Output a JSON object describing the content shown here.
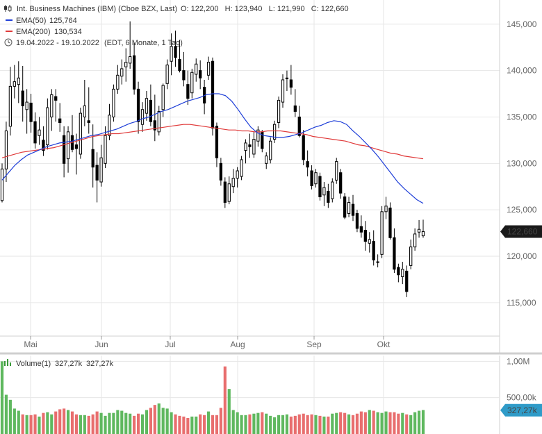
{
  "header": {
    "title": "Int. Business Machines (IBM) (Cboe BZX, Last)",
    "ohlc": "O: 122,200   H: 123,940   L: 121,990   C: 122,660",
    "ema50_label": "EMA(50)",
    "ema50_value": "125,764",
    "ema200_label": "EMA(200)",
    "ema200_value": "130,534",
    "range": "19.04.2022 - 19.10.2022",
    "range_note": "(EDT, 6 Monate, 1 Tag)"
  },
  "colors": {
    "up": "#000000",
    "down": "#000000",
    "ema50": "#1f3fd8",
    "ema200": "#e03a3a",
    "vol_up": "#5fb85f",
    "vol_down": "#e86e6e",
    "badge_price": "#1a1a1a",
    "badge_volume": "#2f9bc8",
    "grid": "#e6e6e6"
  },
  "chart_data": [
    {
      "type": "candlestick",
      "x_tick_labels": [
        "Mai",
        "Jun",
        "Jul",
        "Aug",
        "Sep",
        "Okt"
      ],
      "y_tick_labels": [
        "145,000",
        "140,000",
        "135,000",
        "130,000",
        "125,000",
        "120,000",
        "115,000"
      ],
      "y_ticks": [
        145,
        140,
        135,
        130,
        125,
        120,
        115
      ],
      "ylim": [
        111.4,
        147.6
      ],
      "last_price_label": "122,660",
      "last_price": 122.66,
      "candles": [
        [
          126.0,
          130.0,
          125.8,
          129.4
        ],
        [
          129.4,
          134.5,
          128.0,
          133.5
        ],
        [
          134.0,
          140.4,
          133.0,
          138.3
        ],
        [
          138.3,
          140.6,
          137.0,
          138.8
        ],
        [
          138.5,
          141.0,
          136.5,
          139.2
        ],
        [
          137.8,
          140.5,
          134.5,
          136.2
        ],
        [
          135.8,
          138.0,
          133.2,
          136.6
        ],
        [
          136.5,
          137.5,
          133.3,
          134.5
        ],
        [
          134.5,
          135.5,
          131.6,
          132.2
        ],
        [
          133.0,
          135.0,
          132.0,
          133.6
        ],
        [
          132.5,
          134.0,
          130.8,
          131.4
        ],
        [
          132.0,
          137.0,
          131.5,
          136.0
        ],
        [
          135.0,
          138.0,
          133.5,
          137.4
        ],
        [
          137.2,
          138.0,
          134.5,
          136.8
        ],
        [
          134.8,
          136.5,
          133.4,
          134.4
        ],
        [
          133.0,
          134.0,
          128.5,
          130.0
        ],
        [
          130.5,
          134.0,
          129.0,
          133.4
        ],
        [
          133.0,
          135.2,
          131.2,
          131.5
        ],
        [
          132.0,
          133.2,
          128.8,
          131.6
        ],
        [
          131.0,
          136.0,
          130.5,
          135.4
        ],
        [
          135.0,
          139.0,
          134.0,
          136.2
        ],
        [
          134.6,
          138.2,
          133.2,
          134.4
        ],
        [
          131.5,
          134.2,
          127.4,
          129.6
        ],
        [
          129.8,
          131.2,
          125.8,
          128.2
        ],
        [
          128.0,
          132.0,
          127.5,
          130.6
        ],
        [
          130.0,
          134.0,
          129.5,
          133.0
        ],
        [
          133.0,
          136.4,
          132.5,
          135.2
        ],
        [
          135.0,
          138.5,
          134.5,
          138.0
        ],
        [
          138.0,
          140.6,
          137.5,
          139.5
        ],
        [
          139.4,
          141.2,
          138.5,
          140.2
        ],
        [
          140.4,
          142.4,
          138.8,
          140.9
        ],
        [
          140.8,
          145.3,
          140.2,
          141.5
        ],
        [
          141.6,
          143.0,
          137.4,
          138.0
        ],
        [
          138.0,
          138.8,
          133.2,
          134.5
        ],
        [
          134.2,
          136.6,
          133.4,
          135.8
        ],
        [
          135.4,
          137.8,
          134.6,
          137.0
        ],
        [
          136.8,
          138.5,
          134.0,
          134.5
        ],
        [
          134.6,
          137.4,
          132.4,
          133.6
        ],
        [
          133.4,
          136.2,
          133.0,
          135.6
        ],
        [
          135.8,
          138.6,
          135.0,
          138.4
        ],
        [
          138.6,
          141.2,
          138.0,
          140.6
        ],
        [
          141.0,
          144.0,
          139.5,
          142.6
        ],
        [
          142.6,
          144.3,
          140.4,
          141.4
        ],
        [
          141.2,
          143.3,
          139.8,
          140.0
        ],
        [
          140.0,
          142.0,
          138.3,
          139.0
        ],
        [
          138.5,
          140.0,
          136.3,
          137.0
        ],
        [
          137.6,
          140.2,
          137.0,
          139.8
        ],
        [
          139.6,
          141.3,
          138.8,
          140.7
        ],
        [
          140.0,
          141.1,
          138.0,
          139.2
        ],
        [
          138.2,
          139.0,
          135.3,
          136.5
        ],
        [
          139.5,
          141.5,
          139.0,
          140.9
        ],
        [
          141.0,
          141.4,
          133.0,
          133.8
        ],
        [
          134.0,
          134.4,
          129.6,
          130.6
        ],
        [
          130.0,
          130.6,
          127.6,
          128.2
        ],
        [
          128.0,
          128.5,
          125.2,
          125.8
        ],
        [
          125.9,
          128.6,
          125.6,
          127.8
        ],
        [
          127.5,
          129.4,
          126.8,
          128.4
        ],
        [
          128.4,
          129.6,
          127.4,
          129.2
        ],
        [
          128.6,
          130.8,
          128.2,
          130.4
        ],
        [
          131.4,
          132.6,
          130.0,
          132.2
        ],
        [
          132.0,
          133.2,
          130.6,
          131.8
        ],
        [
          131.0,
          133.4,
          130.6,
          132.6
        ],
        [
          132.4,
          134.0,
          131.8,
          133.6
        ],
        [
          133.4,
          133.6,
          131.2,
          131.6
        ],
        [
          130.0,
          131.2,
          129.4,
          130.8
        ],
        [
          130.4,
          132.8,
          130.0,
          132.4
        ],
        [
          132.6,
          134.6,
          132.2,
          134.2
        ],
        [
          134.4,
          137.2,
          133.8,
          136.8
        ],
        [
          136.6,
          139.6,
          136.0,
          139.0
        ],
        [
          139.2,
          140.0,
          137.8,
          139.2
        ],
        [
          139.0,
          140.6,
          137.4,
          138.2
        ],
        [
          136.2,
          138.0,
          135.0,
          135.6
        ],
        [
          135.0,
          136.2,
          132.8,
          133.0
        ],
        [
          133.0,
          133.6,
          129.8,
          130.4
        ],
        [
          130.2,
          131.4,
          128.6,
          129.6
        ],
        [
          129.2,
          129.8,
          127.2,
          127.6
        ],
        [
          127.8,
          129.4,
          127.4,
          129.0
        ],
        [
          128.6,
          129.0,
          126.0,
          126.4
        ],
        [
          126.6,
          128.0,
          125.4,
          127.4
        ],
        [
          127.0,
          127.8,
          125.2,
          125.8
        ],
        [
          126.2,
          128.4,
          125.8,
          128.0
        ],
        [
          128.2,
          130.6,
          127.8,
          130.2
        ],
        [
          129.0,
          129.4,
          126.2,
          126.8
        ],
        [
          126.4,
          126.8,
          124.0,
          124.2
        ],
        [
          124.6,
          126.4,
          124.2,
          125.8
        ],
        [
          125.6,
          126.6,
          123.8,
          124.4
        ],
        [
          124.6,
          125.0,
          122.6,
          123.0
        ],
        [
          123.2,
          124.4,
          122.0,
          122.6
        ],
        [
          122.8,
          123.8,
          120.6,
          121.6
        ],
        [
          121.4,
          122.6,
          120.4,
          121.8
        ],
        [
          121.6,
          122.8,
          119.0,
          119.6
        ],
        [
          119.4,
          120.2,
          118.8,
          119.4
        ],
        [
          120.2,
          125.4,
          119.8,
          124.8
        ],
        [
          124.8,
          126.4,
          124.0,
          125.4
        ],
        [
          125.2,
          125.8,
          121.8,
          122.0
        ],
        [
          122.0,
          123.0,
          118.2,
          118.6
        ],
        [
          118.8,
          119.2,
          117.2,
          118.0
        ],
        [
          117.8,
          119.4,
          117.0,
          118.6
        ],
        [
          118.4,
          119.0,
          115.6,
          116.2
        ],
        [
          119.0,
          121.8,
          118.6,
          121.0
        ],
        [
          121.0,
          123.0,
          120.6,
          122.4
        ],
        [
          122.6,
          123.9,
          122.0,
          122.9
        ],
        [
          122.2,
          123.94,
          121.99,
          122.66
        ]
      ],
      "ema50": [
        128.2,
        129.0,
        129.8,
        130.4,
        130.9,
        131.2,
        131.5,
        131.8,
        132.0,
        132.2,
        132.3,
        132.4,
        132.6,
        132.8,
        133.0,
        133.1,
        133.3,
        133.5,
        133.7,
        134.0,
        134.3,
        134.5,
        134.8,
        135.0,
        135.3,
        135.6,
        135.8,
        136.1,
        136.4,
        136.7,
        136.9,
        137.1,
        137.4,
        137.5,
        137.5,
        137.3,
        136.7,
        135.8,
        134.8,
        133.9,
        133.3,
        133.0,
        132.9,
        132.8,
        132.8,
        132.9,
        133.1,
        133.3,
        133.6,
        133.9,
        134.1,
        134.4,
        134.6,
        134.5,
        134.2,
        133.5,
        132.9,
        132.2,
        131.5,
        130.7,
        129.8,
        128.9,
        128.0,
        127.3,
        126.7,
        126.1,
        125.7
      ],
      "ema200": [
        130.6,
        130.8,
        131.0,
        131.2,
        131.3,
        131.4,
        131.5,
        131.6,
        131.7,
        131.9,
        132.1,
        132.3,
        132.5,
        132.7,
        132.9,
        133.0,
        133.1,
        133.2,
        133.2,
        133.3,
        133.4,
        133.5,
        133.6,
        133.7,
        133.8,
        133.9,
        134.0,
        134.1,
        134.2,
        134.2,
        134.1,
        134.0,
        133.9,
        133.8,
        133.7,
        133.6,
        133.6,
        133.5,
        133.5,
        133.4,
        133.4,
        133.5,
        133.5,
        133.5,
        133.4,
        133.3,
        133.2,
        133.1,
        132.9,
        132.8,
        132.7,
        132.6,
        132.5,
        132.4,
        132.2,
        132.0,
        131.9,
        131.7,
        131.5,
        131.3,
        131.1,
        131.0,
        130.8,
        130.7,
        130.6,
        130.5
      ],
      "volume": [
        1.0,
        0.54,
        0.47,
        0.35,
        0.32,
        0.27,
        0.26,
        0.26,
        0.27,
        0.24,
        0.29,
        0.3,
        0.27,
        0.31,
        0.34,
        0.35,
        0.33,
        0.31,
        0.27,
        0.26,
        0.26,
        0.25,
        0.27,
        0.31,
        0.29,
        0.25,
        0.29,
        0.29,
        0.33,
        0.32,
        0.29,
        0.28,
        0.25,
        0.28,
        0.27,
        0.33,
        0.36,
        0.4,
        0.42,
        0.36,
        0.35,
        0.3,
        0.27,
        0.25,
        0.24,
        0.22,
        0.24,
        0.24,
        0.27,
        0.26,
        0.31,
        0.26,
        0.26,
        0.36,
        0.93,
        0.62,
        0.33,
        0.3,
        0.26,
        0.26,
        0.27,
        0.28,
        0.29,
        0.3,
        0.28,
        0.25,
        0.23,
        0.26,
        0.26,
        0.27,
        0.24,
        0.25,
        0.27,
        0.28,
        0.26,
        0.27,
        0.26,
        0.25,
        0.24,
        0.24,
        0.28,
        0.29,
        0.3,
        0.29,
        0.27,
        0.26,
        0.28,
        0.31,
        0.3,
        0.33,
        0.32,
        0.3,
        0.29,
        0.31,
        0.3,
        0.3,
        0.28,
        0.29,
        0.27,
        0.26,
        0.3,
        0.32,
        0.33
      ]
    },
    {
      "type": "bar",
      "name": "Volume(1)",
      "legend_value_1": "327,27k",
      "legend_value_2": "327,27k",
      "y_tick_labels": [
        "1,00M",
        "500,00k"
      ],
      "y_ticks": [
        1.0,
        0.5
      ],
      "ylim": [
        0,
        1.08
      ],
      "last_value_label": "327,27k",
      "last_value": 0.32727
    }
  ]
}
